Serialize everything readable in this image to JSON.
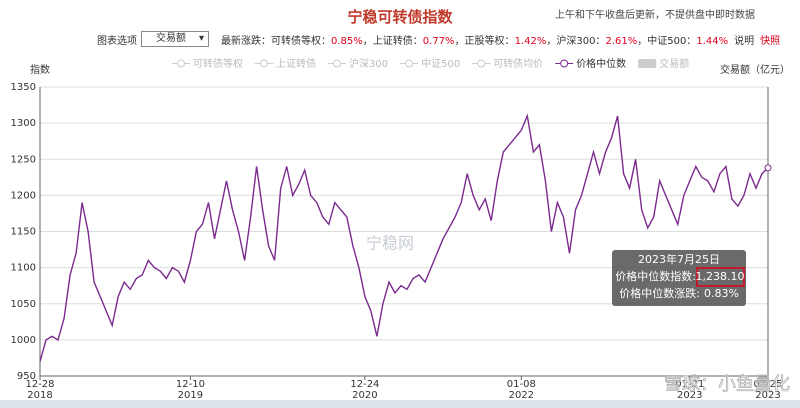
{
  "header": {
    "title": "宁稳可转债指数",
    "note": "上午和下午收盘后更新，不提供盘中即时数据"
  },
  "controls": {
    "options_label": "图表选项",
    "select_value": "交易额",
    "change_label": "最新涨跌：",
    "changes": [
      {
        "name": "可转债等权：",
        "value": "0.85%"
      },
      {
        "name": "，上证转债：",
        "value": "0.77%"
      },
      {
        "name": "，正股等权：",
        "value": "1.42%"
      },
      {
        "name": "，沪深300：",
        "value": "2.61%"
      },
      {
        "name": "，中证500：",
        "value": "1.44%"
      }
    ],
    "link_info": "说明",
    "link_snapshot": "快照"
  },
  "chart_data": {
    "type": "line",
    "y_axis_title": "指数",
    "y2_axis_title": "交易额（亿元）",
    "legend_before": [
      "可转债等权",
      "上证转债",
      "沪深300",
      "中证500",
      "可转债均价"
    ],
    "legend_after": [
      "交易额"
    ],
    "watermark": "宁稳网",
    "watermark2": "雪球：小鱼量化",
    "categories": [
      "12-28",
      null,
      null,
      null,
      null,
      null,
      null,
      null,
      null,
      null,
      null,
      null,
      null,
      null,
      null,
      null,
      null,
      null,
      null,
      null,
      null,
      null,
      null,
      null,
      null,
      "12-10",
      null,
      null,
      null,
      null,
      null,
      null,
      null,
      null,
      null,
      null,
      null,
      null,
      null,
      null,
      null,
      null,
      null,
      null,
      null,
      null,
      null,
      null,
      null,
      null,
      null,
      null,
      null,
      null,
      "12-24",
      null,
      null,
      null,
      null,
      null,
      null,
      null,
      null,
      null,
      null,
      null,
      null,
      null,
      null,
      null,
      null,
      null,
      null,
      null,
      null,
      null,
      null,
      null,
      null,
      null,
      "01-08",
      null,
      null,
      null,
      null,
      null,
      null,
      null,
      null,
      null,
      null,
      null,
      null,
      null,
      null,
      null,
      null,
      null,
      null,
      null,
      null,
      null,
      null,
      null,
      null,
      null,
      null,
      null,
      "01-21",
      null,
      null,
      null,
      null,
      null,
      null,
      null,
      null,
      null,
      null,
      null,
      null,
      "07-25"
    ],
    "category_years": [
      "2018",
      null,
      null,
      null,
      null,
      null,
      null,
      null,
      null,
      null,
      null,
      null,
      null,
      null,
      null,
      null,
      null,
      null,
      null,
      null,
      null,
      null,
      null,
      null,
      null,
      "2019",
      null,
      null,
      null,
      null,
      null,
      null,
      null,
      null,
      null,
      null,
      null,
      null,
      null,
      null,
      null,
      null,
      null,
      null,
      null,
      null,
      null,
      null,
      null,
      null,
      null,
      null,
      null,
      null,
      "2020",
      null,
      null,
      null,
      null,
      null,
      null,
      null,
      null,
      null,
      null,
      null,
      null,
      null,
      null,
      null,
      null,
      null,
      null,
      null,
      null,
      null,
      null,
      null,
      null,
      null,
      "2022",
      null,
      null,
      null,
      null,
      null,
      null,
      null,
      null,
      null,
      null,
      null,
      null,
      null,
      null,
      null,
      null,
      null,
      null,
      null,
      null,
      null,
      null,
      null,
      null,
      null,
      null,
      null,
      "2023",
      null,
      null,
      null,
      null,
      null,
      null,
      null,
      null,
      null,
      null,
      null,
      null,
      "2023"
    ],
    "series": [
      {
        "name": "价格中位数",
        "color": "#7b2a8e",
        "values": [
          970,
          1000,
          1005,
          1000,
          1030,
          1090,
          1120,
          1190,
          1150,
          1080,
          1060,
          1040,
          1020,
          1060,
          1080,
          1070,
          1085,
          1090,
          1110,
          1100,
          1095,
          1085,
          1100,
          1095,
          1080,
          1110,
          1150,
          1160,
          1190,
          1140,
          1180,
          1220,
          1180,
          1150,
          1110,
          1170,
          1240,
          1180,
          1130,
          1110,
          1210,
          1240,
          1200,
          1215,
          1235,
          1200,
          1190,
          1170,
          1160,
          1190,
          1180,
          1170,
          1130,
          1100,
          1060,
          1040,
          1005,
          1050,
          1080,
          1065,
          1075,
          1070,
          1085,
          1090,
          1080,
          1100,
          1120,
          1140,
          1155,
          1170,
          1190,
          1230,
          1200,
          1180,
          1195,
          1165,
          1220,
          1260,
          1270,
          1280,
          1290,
          1310,
          1260,
          1270,
          1220,
          1150,
          1190,
          1170,
          1120,
          1180,
          1200,
          1230,
          1260,
          1230,
          1260,
          1280,
          1310,
          1230,
          1210,
          1250,
          1180,
          1155,
          1170,
          1220,
          1200,
          1180,
          1160,
          1200,
          1220,
          1240,
          1225,
          1220,
          1205,
          1230,
          1240,
          1195,
          1185,
          1200,
          1230,
          1210,
          1230,
          1238.1
        ]
      }
    ],
    "ylim": [
      950,
      1350
    ],
    "yticks": [
      950,
      1000,
      1050,
      1100,
      1150,
      1200,
      1250,
      1300,
      1350
    ],
    "grid": true,
    "tooltip": {
      "date": "2023年7月25日",
      "label1": "价格中位数指数:",
      "value1": "1,238.10",
      "label2": "价格中位数涨跌:",
      "value2": "0.83%"
    }
  }
}
